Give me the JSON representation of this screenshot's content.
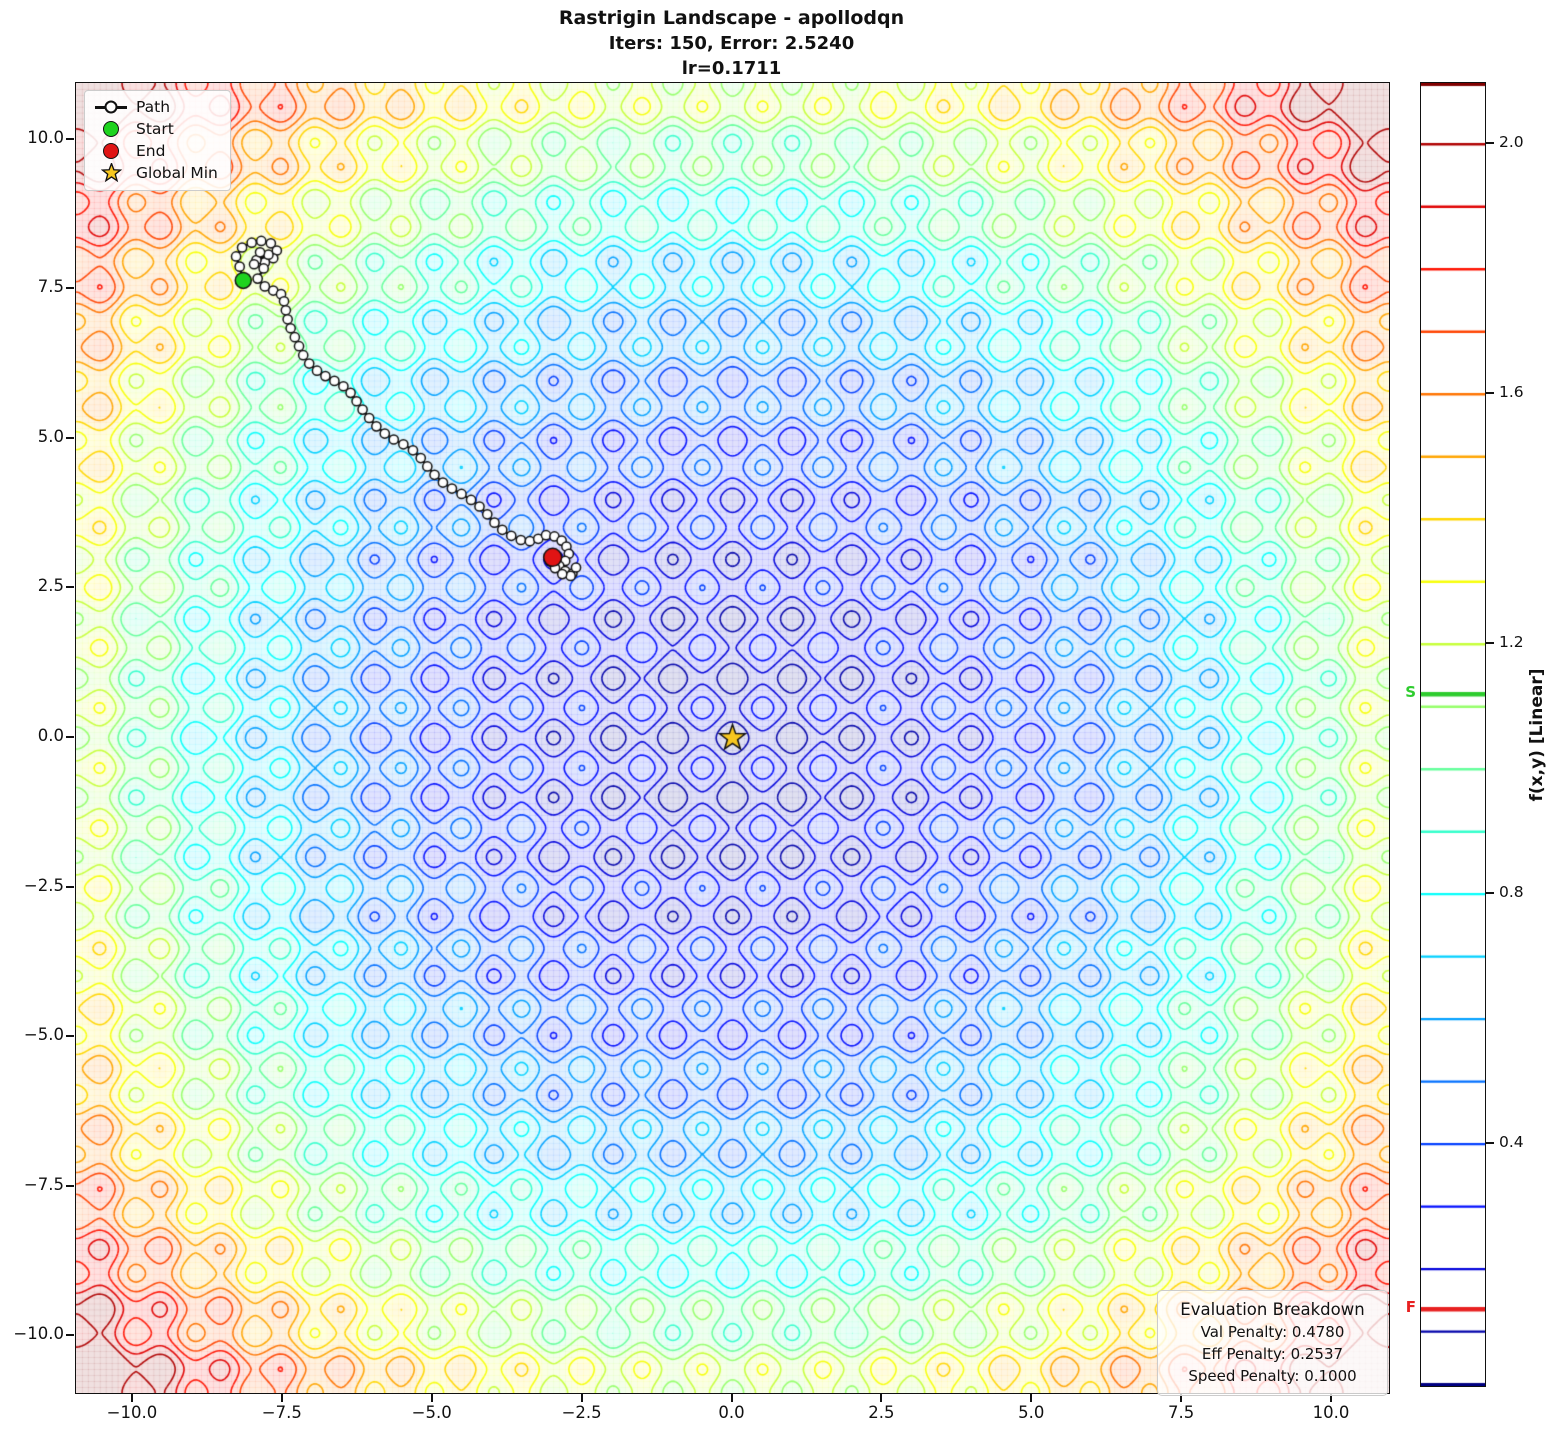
{
  "title": {
    "line1": "Rastrigin Landscape - apollodqn",
    "line2": "Iters: 150, Error: 2.5240",
    "line3": "lr=0.1711"
  },
  "legend": {
    "items": [
      {
        "label": "Path",
        "marker": "line-with-circle"
      },
      {
        "label": "Start",
        "marker": "circle",
        "color": "#1ed31e"
      },
      {
        "label": "End",
        "marker": "circle",
        "color": "#e01414"
      },
      {
        "label": "Global Min",
        "marker": "star",
        "color": "#f7c71f"
      }
    ]
  },
  "evaluation_box": {
    "title": "Evaluation Breakdown",
    "rows": [
      {
        "text": "Val Penalty: 0.4780"
      },
      {
        "text": "Eff Penalty: 0.2537"
      },
      {
        "text": "Speed Penalty: 0.1000"
      }
    ]
  },
  "axes": {
    "x_ticks": [
      {
        "value": -10,
        "label": "−10.0"
      },
      {
        "value": -7.5,
        "label": "−7.5"
      },
      {
        "value": -5,
        "label": "−5.0"
      },
      {
        "value": -2.5,
        "label": "−2.5"
      },
      {
        "value": 0,
        "label": "0.0"
      },
      {
        "value": 2.5,
        "label": "2.5"
      },
      {
        "value": 5,
        "label": "5.0"
      },
      {
        "value": 7.5,
        "label": "7.5"
      },
      {
        "value": 10,
        "label": "10.0"
      }
    ],
    "y_ticks": [
      {
        "value": 10,
        "label": "10.0"
      },
      {
        "value": 7.5,
        "label": "7.5"
      },
      {
        "value": 5,
        "label": "5.0"
      },
      {
        "value": 2.5,
        "label": "2.5"
      },
      {
        "value": 0,
        "label": "0.0"
      },
      {
        "value": -2.5,
        "label": "−2.5"
      },
      {
        "value": -5,
        "label": "−5.0"
      },
      {
        "value": -7.5,
        "label": "−7.5"
      },
      {
        "value": -10,
        "label": "−10.0"
      }
    ]
  },
  "colorbar": {
    "label": "f(x,y) [Linear]",
    "vmin": 0.013,
    "vmax": 2.098,
    "ticks": [
      {
        "value": 2.0,
        "label": "2.0"
      },
      {
        "value": 1.6,
        "label": "1.6"
      },
      {
        "value": 1.2,
        "label": "1.2"
      },
      {
        "value": 0.8,
        "label": "0.8"
      },
      {
        "value": 0.4,
        "label": "0.4"
      }
    ],
    "line_levels": [
      0.1,
      0.2,
      0.3,
      0.4,
      0.5,
      0.6,
      0.7,
      0.8,
      0.9,
      1.0,
      1.1,
      1.2,
      1.3,
      1.4,
      1.5,
      1.6,
      1.7,
      1.8,
      1.9,
      2.0
    ],
    "start_marker": {
      "label": "S",
      "value": 1.12,
      "color": "#2ecc2e"
    },
    "final_marker": {
      "label": "F",
      "value": 0.136,
      "color": "#e82020"
    }
  },
  "chart_data": {
    "type": "contour",
    "function": "rastrigin",
    "formula": "f(x,y) = (20 + x^2 - 10cos(2*pi*x) + y^2 - 10cos(2*pi*y)) / 115",
    "colormap": "jet",
    "scale_divisor": 115,
    "xlim": [
      -10.95,
      10.95
    ],
    "ylim": [
      -10.95,
      10.95
    ],
    "levels": [
      0.1,
      0.2,
      0.3,
      0.4,
      0.5,
      0.6,
      0.7,
      0.8,
      0.9,
      1.0,
      1.1,
      1.2,
      1.3,
      1.4,
      1.5,
      1.6,
      1.7,
      1.8,
      1.9,
      2.0
    ],
    "start": [
      -8.16,
      7.65
    ],
    "end": [
      -3.0,
      3.02
    ],
    "global_min": [
      0,
      0
    ],
    "path": [
      [
        -8.16,
        7.65
      ],
      [
        -8.22,
        7.88
      ],
      [
        -8.28,
        8.05
      ],
      [
        -8.18,
        8.2
      ],
      [
        -8.02,
        8.28
      ],
      [
        -7.86,
        8.31
      ],
      [
        -7.7,
        8.27
      ],
      [
        -7.6,
        8.15
      ],
      [
        -7.66,
        8.02
      ],
      [
        -7.8,
        7.95
      ],
      [
        -7.94,
        7.99
      ],
      [
        -7.74,
        8.08
      ],
      [
        -7.88,
        8.12
      ],
      [
        -7.98,
        7.92
      ],
      [
        -7.82,
        7.85
      ],
      [
        -7.92,
        7.68
      ],
      [
        -7.8,
        7.55
      ],
      [
        -7.66,
        7.48
      ],
      [
        -7.53,
        7.42
      ],
      [
        -7.48,
        7.3
      ],
      [
        -7.45,
        7.15
      ],
      [
        -7.42,
        7.0
      ],
      [
        -7.37,
        6.85
      ],
      [
        -7.3,
        6.7
      ],
      [
        -7.23,
        6.55
      ],
      [
        -7.16,
        6.4
      ],
      [
        -7.06,
        6.26
      ],
      [
        -6.93,
        6.14
      ],
      [
        -6.79,
        6.05
      ],
      [
        -6.64,
        5.97
      ],
      [
        -6.49,
        5.88
      ],
      [
        -6.37,
        5.77
      ],
      [
        -6.27,
        5.63
      ],
      [
        -6.17,
        5.49
      ],
      [
        -6.06,
        5.35
      ],
      [
        -5.94,
        5.21
      ],
      [
        -5.8,
        5.09
      ],
      [
        -5.65,
        4.99
      ],
      [
        -5.49,
        4.91
      ],
      [
        -5.33,
        4.81
      ],
      [
        -5.2,
        4.68
      ],
      [
        -5.09,
        4.54
      ],
      [
        -4.97,
        4.4
      ],
      [
        -4.83,
        4.27
      ],
      [
        -4.68,
        4.17
      ],
      [
        -4.52,
        4.08
      ],
      [
        -4.36,
        3.98
      ],
      [
        -4.22,
        3.87
      ],
      [
        -4.09,
        3.74
      ],
      [
        -3.97,
        3.6
      ],
      [
        -3.84,
        3.48
      ],
      [
        -3.69,
        3.38
      ],
      [
        -3.53,
        3.31
      ],
      [
        -3.38,
        3.29
      ],
      [
        -3.24,
        3.33
      ],
      [
        -3.11,
        3.39
      ],
      [
        -2.97,
        3.37
      ],
      [
        -2.85,
        3.3
      ],
      [
        -2.77,
        3.2
      ],
      [
        -2.73,
        3.08
      ],
      [
        -2.79,
        2.96
      ],
      [
        -2.89,
        2.88
      ],
      [
        -2.79,
        2.79
      ],
      [
        -2.67,
        2.75
      ],
      [
        -2.61,
        2.85
      ],
      [
        -2.7,
        2.71
      ],
      [
        -2.84,
        2.74
      ],
      [
        -2.96,
        2.84
      ],
      [
        -3.04,
        2.95
      ],
      [
        -3.0,
        3.02
      ]
    ],
    "styles": {
      "path_color": "#111111",
      "path_marker_fill": "#ffffff",
      "start_color": "#1ed31e",
      "end_color": "#e01414",
      "star_fill": "#f7c71f",
      "star_edge": "#111111"
    }
  }
}
